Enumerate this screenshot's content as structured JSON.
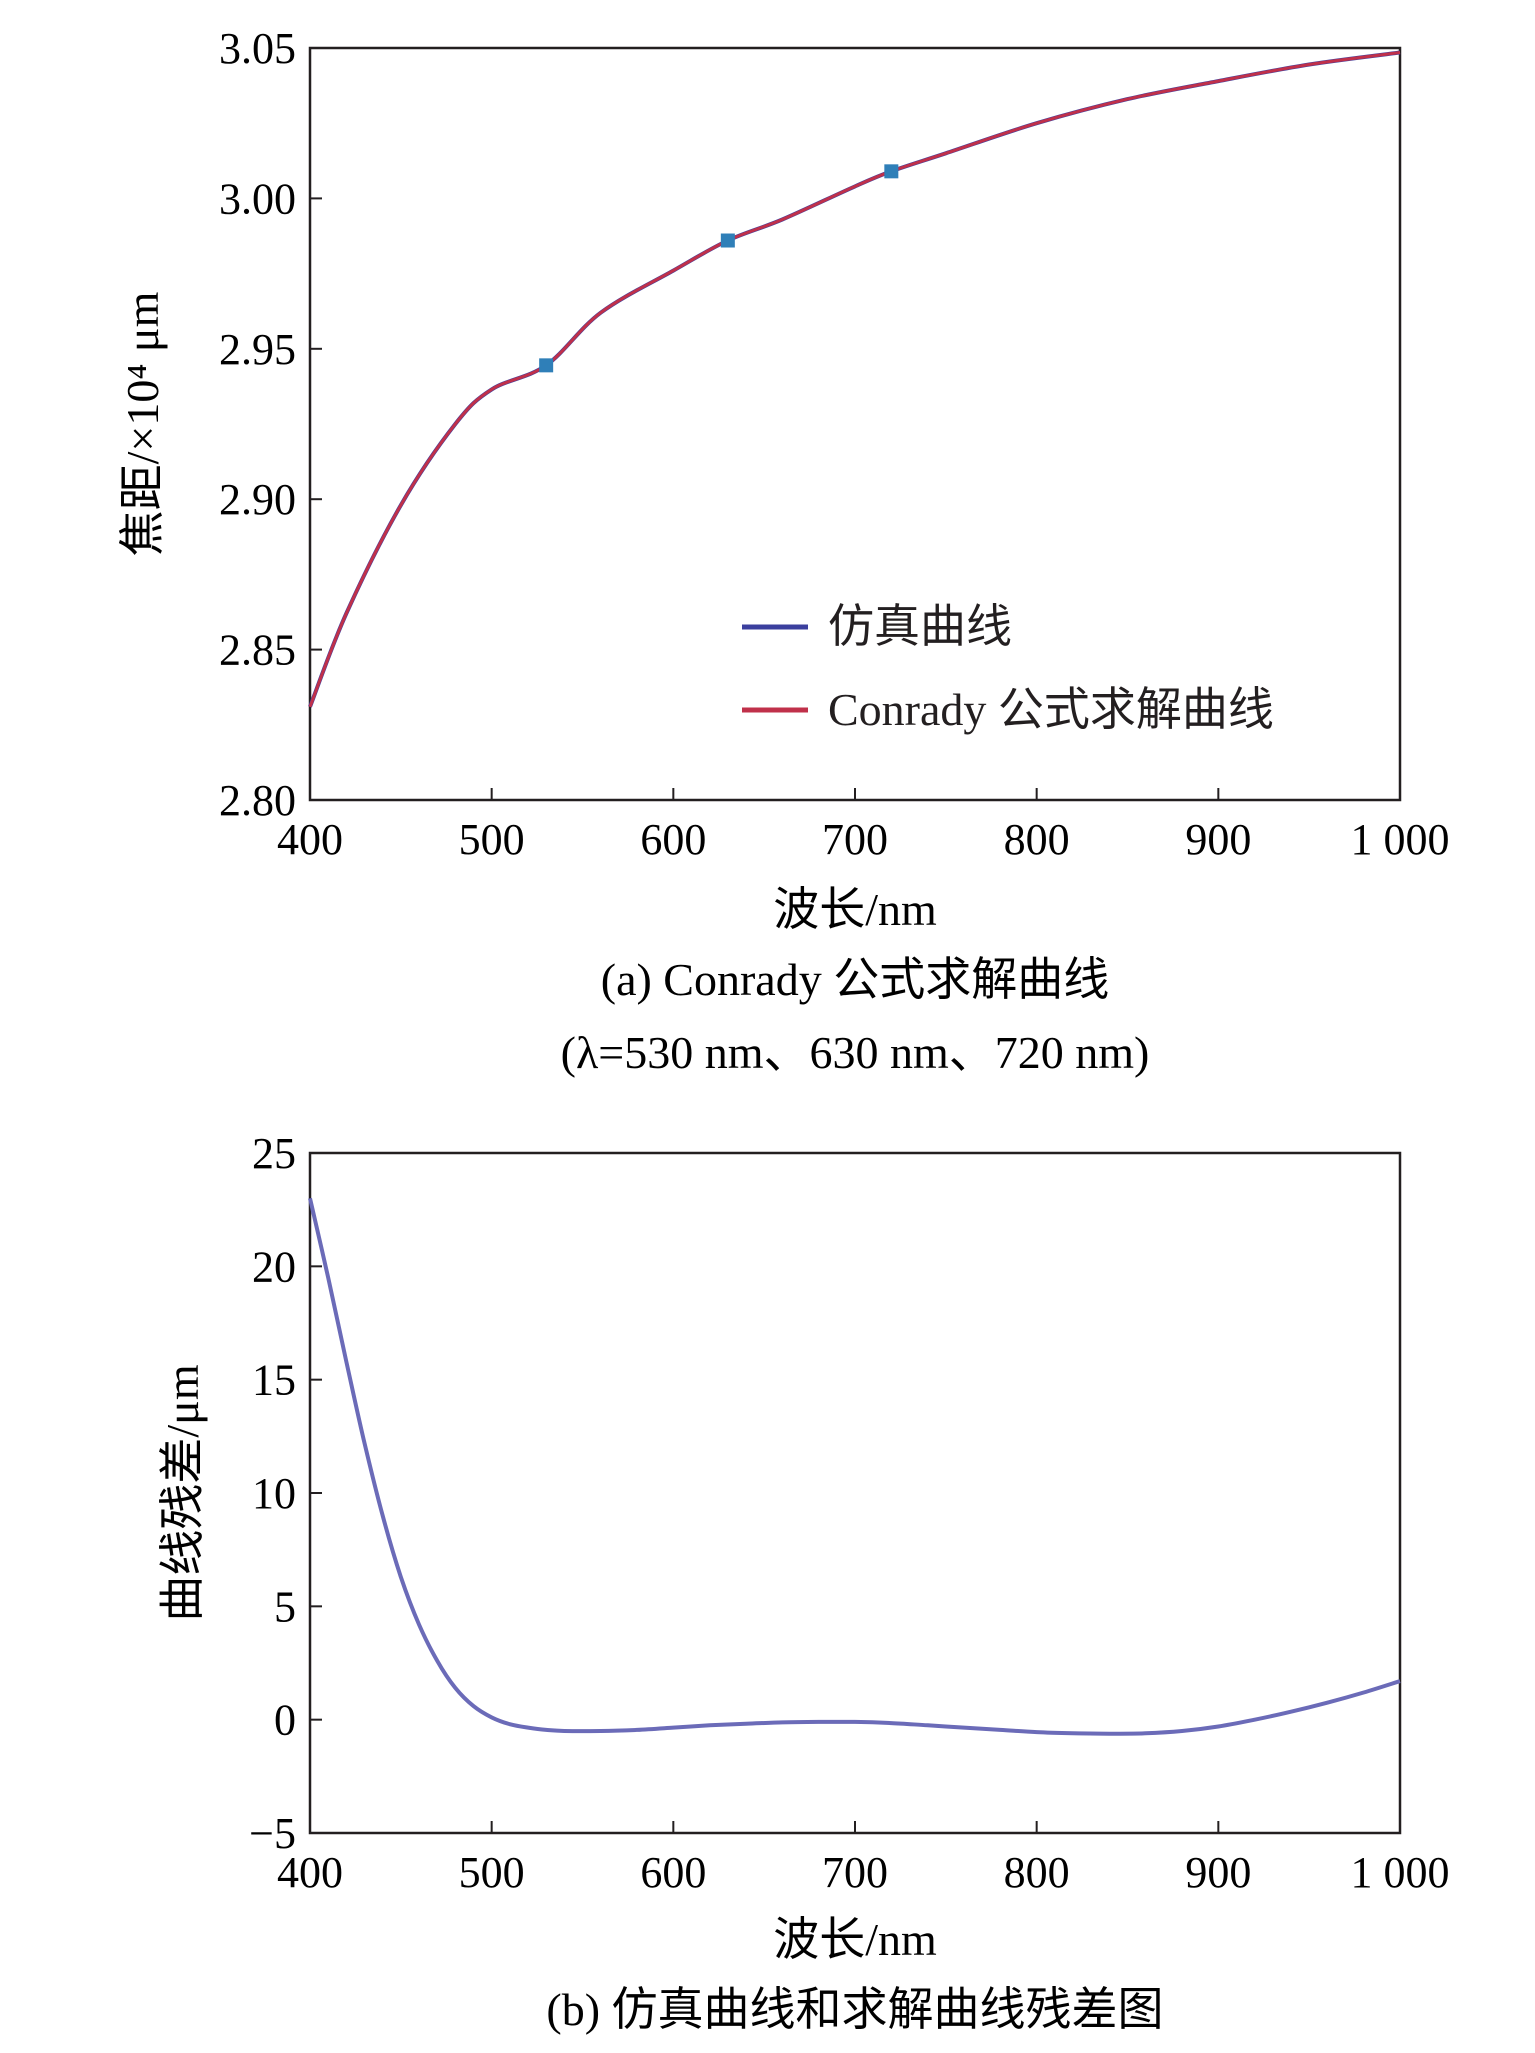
{
  "chart_data": [
    {
      "type": "line",
      "xlabel": "波长/nm",
      "ylabel": "焦距/×10⁴ μm",
      "xlim": [
        400,
        1000
      ],
      "ylim": [
        2.8,
        3.05
      ],
      "xticks": [
        "400",
        "500",
        "600",
        "700",
        "800",
        "900",
        "1 000"
      ],
      "yticks": [
        "2.80",
        "2.85",
        "2.90",
        "2.95",
        "3.00",
        "3.05"
      ],
      "xtick_values": [
        400,
        500,
        600,
        700,
        800,
        900,
        1000
      ],
      "ytick_values": [
        2.8,
        2.85,
        2.9,
        2.95,
        3.0,
        3.05
      ],
      "grid": false,
      "legend_position": "bottom-right",
      "caption_line1": "(a) Conrady 公式求解曲线",
      "caption_line2": "(λ=530 nm、630 nm、720 nm)",
      "series": [
        {
          "name": "仿真曲线",
          "color": "#3b3f9e",
          "x": [
            400,
            420,
            450,
            480,
            500,
            530,
            560,
            600,
            630,
            660,
            700,
            720,
            750,
            800,
            850,
            900,
            950,
            1000
          ],
          "y": [
            2.831,
            2.862,
            2.898,
            2.925,
            2.9365,
            2.9445,
            2.962,
            2.976,
            2.986,
            2.993,
            3.004,
            3.009,
            3.015,
            3.025,
            3.033,
            3.039,
            3.0445,
            3.0485
          ]
        },
        {
          "name": "Conrady 公式求解曲线",
          "color": "#c0304a",
          "x": [
            400,
            420,
            450,
            480,
            500,
            530,
            560,
            600,
            630,
            660,
            700,
            720,
            750,
            800,
            850,
            900,
            950,
            1000
          ],
          "y": [
            2.831,
            2.862,
            2.898,
            2.925,
            2.9365,
            2.9445,
            2.962,
            2.976,
            2.986,
            2.993,
            3.004,
            3.009,
            3.015,
            3.025,
            3.033,
            3.039,
            3.0445,
            3.0485
          ]
        }
      ],
      "markers": {
        "color": "#2f7fb8",
        "x": [
          530,
          630,
          720
        ],
        "y": [
          2.9445,
          2.986,
          3.009
        ]
      }
    },
    {
      "type": "line",
      "xlabel": "波长/nm",
      "ylabel": "曲线残差/μm",
      "xlim": [
        400,
        1000
      ],
      "ylim": [
        -5,
        25
      ],
      "xticks": [
        "400",
        "500",
        "600",
        "700",
        "800",
        "900",
        "1 000"
      ],
      "yticks": [
        "−5",
        "0",
        "5",
        "10",
        "15",
        "20",
        "25"
      ],
      "xtick_values": [
        400,
        500,
        600,
        700,
        800,
        900,
        1000
      ],
      "ytick_values": [
        -5,
        0,
        5,
        10,
        15,
        20,
        25
      ],
      "grid": false,
      "caption": "(b) 仿真曲线和求解曲线残差图",
      "series": [
        {
          "color": "#6b6bb8",
          "x": [
            400,
            410,
            420,
            430,
            440,
            450,
            460,
            470,
            480,
            490,
            500,
            510,
            520,
            530,
            540,
            560,
            580,
            600,
            620,
            640,
            660,
            680,
            700,
            720,
            740,
            760,
            780,
            800,
            820,
            840,
            860,
            880,
            900,
            920,
            940,
            960,
            980,
            1000
          ],
          "y": [
            23.0,
            19.5,
            15.8,
            12.2,
            9.0,
            6.3,
            4.2,
            2.6,
            1.4,
            0.6,
            0.1,
            -0.2,
            -0.35,
            -0.45,
            -0.5,
            -0.5,
            -0.45,
            -0.35,
            -0.25,
            -0.18,
            -0.12,
            -0.1,
            -0.1,
            -0.15,
            -0.25,
            -0.35,
            -0.45,
            -0.55,
            -0.6,
            -0.62,
            -0.6,
            -0.5,
            -0.3,
            0.0,
            0.35,
            0.75,
            1.2,
            1.7
          ]
        }
      ]
    }
  ]
}
